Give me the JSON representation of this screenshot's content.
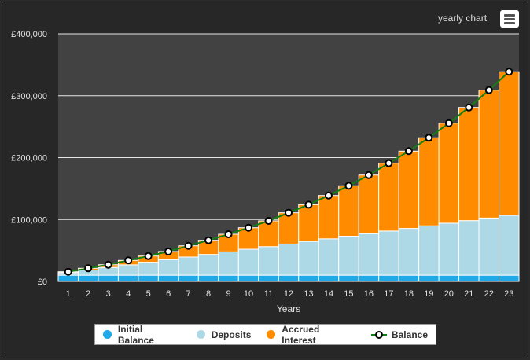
{
  "header": {
    "title": "yearly chart",
    "menu_icon": "hamburger-icon"
  },
  "chart_data": {
    "type": "bar",
    "stacked": true,
    "xlabel": "Years",
    "ylabel": "",
    "ylim": [
      0,
      400000
    ],
    "yticks": [
      "£0",
      "£100,000",
      "£200,000",
      "£300,000",
      "£400,000"
    ],
    "ytick_values": [
      0,
      100000,
      200000,
      300000,
      400000
    ],
    "grid": true,
    "legend": "bottom",
    "categories": [
      "1",
      "2",
      "3",
      "4",
      "5",
      "6",
      "7",
      "8",
      "9",
      "10",
      "11",
      "12",
      "13",
      "14",
      "15",
      "16",
      "17",
      "18",
      "19",
      "20",
      "21",
      "22",
      "23"
    ],
    "series": [
      {
        "name": "Initial Balance",
        "type": "bar",
        "color": "#1fa9e8",
        "values": [
          10000,
          10000,
          10000,
          10000,
          10000,
          10000,
          10000,
          10000,
          10000,
          10000,
          10000,
          10000,
          10000,
          10000,
          10000,
          10000,
          10000,
          10000,
          10000,
          10000,
          10000,
          10000,
          10000
        ]
      },
      {
        "name": "Deposits",
        "type": "bar",
        "color": "#add8e6",
        "values": [
          4200,
          8400,
          12600,
          16800,
          21000,
          25200,
          29400,
          33600,
          37800,
          42000,
          46200,
          50400,
          54600,
          58800,
          63000,
          67200,
          71400,
          75600,
          79800,
          84000,
          88200,
          92400,
          96600
        ]
      },
      {
        "name": "Accrued Interest",
        "type": "bar",
        "color": "#ff8c00",
        "values": [
          1400,
          2800,
          4400,
          7100,
          10000,
          13100,
          18100,
          22800,
          28400,
          34700,
          41600,
          50500,
          59400,
          70000,
          81500,
          94600,
          109500,
          124800,
          142200,
          161600,
          182800,
          206600,
          232100
        ]
      },
      {
        "name": "Balance",
        "type": "line",
        "color": "#138013",
        "values": [
          15600,
          21200,
          27000,
          33900,
          41000,
          48300,
          57500,
          66400,
          76200,
          86700,
          97800,
          110900,
          124000,
          138800,
          154500,
          171800,
          190900,
          210400,
          232000,
          255600,
          281000,
          309000,
          338700
        ]
      }
    ]
  }
}
